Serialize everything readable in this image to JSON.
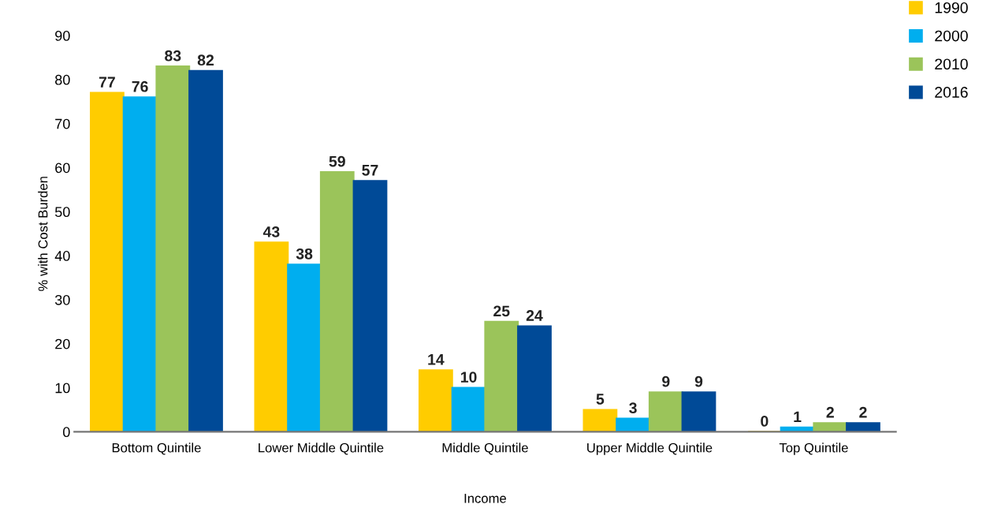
{
  "chart_data": {
    "type": "bar",
    "xlabel": "Income",
    "ylabel": "% with Cost Burden",
    "categories": [
      "Bottom Quintile",
      "Lower Middle Quintile",
      "Middle Quintile",
      "Upper Middle Quintile",
      "Top Quintile"
    ],
    "series": [
      {
        "name": "1990",
        "color": "#ffcc00",
        "values": [
          77,
          43,
          14,
          5,
          0
        ]
      },
      {
        "name": "2000",
        "color": "#00aeef",
        "values": [
          76,
          38,
          10,
          3,
          1
        ]
      },
      {
        "name": "2010",
        "color": "#9bc45a",
        "values": [
          83,
          59,
          25,
          9,
          2
        ]
      },
      {
        "name": "2016",
        "color": "#004a97",
        "values": [
          82,
          57,
          24,
          9,
          2
        ]
      }
    ],
    "ylim": [
      0,
      90
    ],
    "yticks": [
      0,
      10,
      20,
      30,
      40,
      50,
      60,
      70,
      80,
      90
    ],
    "data_labels": true,
    "grid": false,
    "legend": "top right"
  }
}
